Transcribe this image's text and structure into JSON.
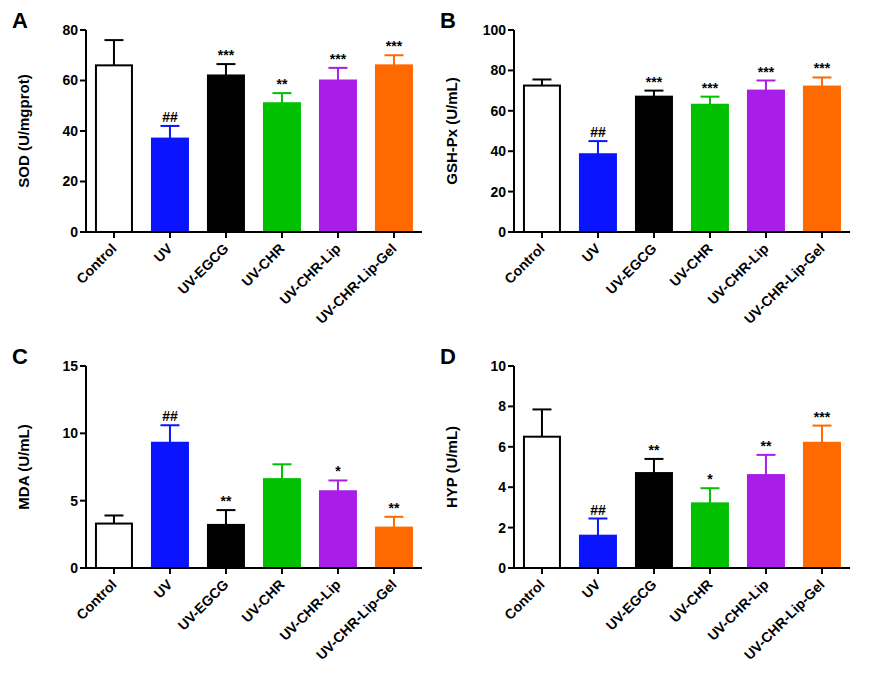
{
  "chart_data": [
    {
      "type": "bar",
      "title": "A",
      "y_label": "SOD (U/mgprot)",
      "categories": [
        "Control",
        "UV",
        "UV-EGCG",
        "UV-CHR",
        "UV-CHR-Lip",
        "UV-CHR-Lip-Gel"
      ],
      "values": [
        66,
        37,
        62,
        51,
        60,
        66
      ],
      "errors": [
        10,
        5,
        4.5,
        4,
        5,
        4
      ],
      "significance": [
        null,
        "##",
        "***",
        "**",
        "***",
        "***"
      ],
      "colors": [
        "#ffffff",
        "#0a14ff",
        "#000000",
        "#00c000",
        "#a81ee8",
        "#ff6a00"
      ],
      "ylim": [
        0,
        80
      ],
      "yticks": [
        0,
        20,
        40,
        60,
        80
      ]
    },
    {
      "type": "bar",
      "title": "B",
      "y_label": "GSH-Px (U/mL)",
      "categories": [
        "Control",
        "UV",
        "UV-EGCG",
        "UV-CHR",
        "UV-CHR-Lip",
        "UV-CHR-Lip-Gel"
      ],
      "values": [
        72.5,
        38.5,
        67,
        63,
        70,
        72
      ],
      "errors": [
        3,
        6.5,
        3,
        4,
        5,
        4.5
      ],
      "significance": [
        null,
        "##",
        "***",
        "***",
        "***",
        "***"
      ],
      "colors": [
        "#ffffff",
        "#0a14ff",
        "#000000",
        "#00c000",
        "#a81ee8",
        "#ff6a00"
      ],
      "ylim": [
        0,
        100
      ],
      "yticks": [
        0,
        20,
        40,
        60,
        80,
        100
      ]
    },
    {
      "type": "bar",
      "title": "C",
      "y_label": "MDA (U/mL)",
      "categories": [
        "Control",
        "UV",
        "UV-EGCG",
        "UV-CHR",
        "UV-CHR-Lip",
        "UV-CHR-Lip-Gel"
      ],
      "values": [
        3.3,
        9.3,
        3.2,
        6.6,
        5.7,
        3.0
      ],
      "errors": [
        0.6,
        1.3,
        1.1,
        1.1,
        0.8,
        0.8
      ],
      "significance": [
        null,
        "##",
        "**",
        null,
        "*",
        "**"
      ],
      "colors": [
        "#ffffff",
        "#0a14ff",
        "#000000",
        "#00c000",
        "#a81ee8",
        "#ff6a00"
      ],
      "ylim": [
        0,
        15
      ],
      "yticks": [
        0,
        5,
        10,
        15
      ]
    },
    {
      "type": "bar",
      "title": "D",
      "y_label": "HYP (U/mL)",
      "categories": [
        "Control",
        "UV",
        "UV-EGCG",
        "UV-CHR",
        "UV-CHR-Lip",
        "UV-CHR-Lip-Gel"
      ],
      "values": [
        6.5,
        1.6,
        4.7,
        3.2,
        4.6,
        6.2
      ],
      "errors": [
        1.35,
        0.85,
        0.7,
        0.75,
        1.0,
        0.85
      ],
      "significance": [
        null,
        "##",
        "**",
        "*",
        "**",
        "***"
      ],
      "colors": [
        "#ffffff",
        "#0a14ff",
        "#000000",
        "#00c000",
        "#a81ee8",
        "#ff6a00"
      ],
      "ylim": [
        0,
        10
      ],
      "yticks": [
        0,
        2,
        4,
        6,
        8,
        10
      ]
    }
  ]
}
